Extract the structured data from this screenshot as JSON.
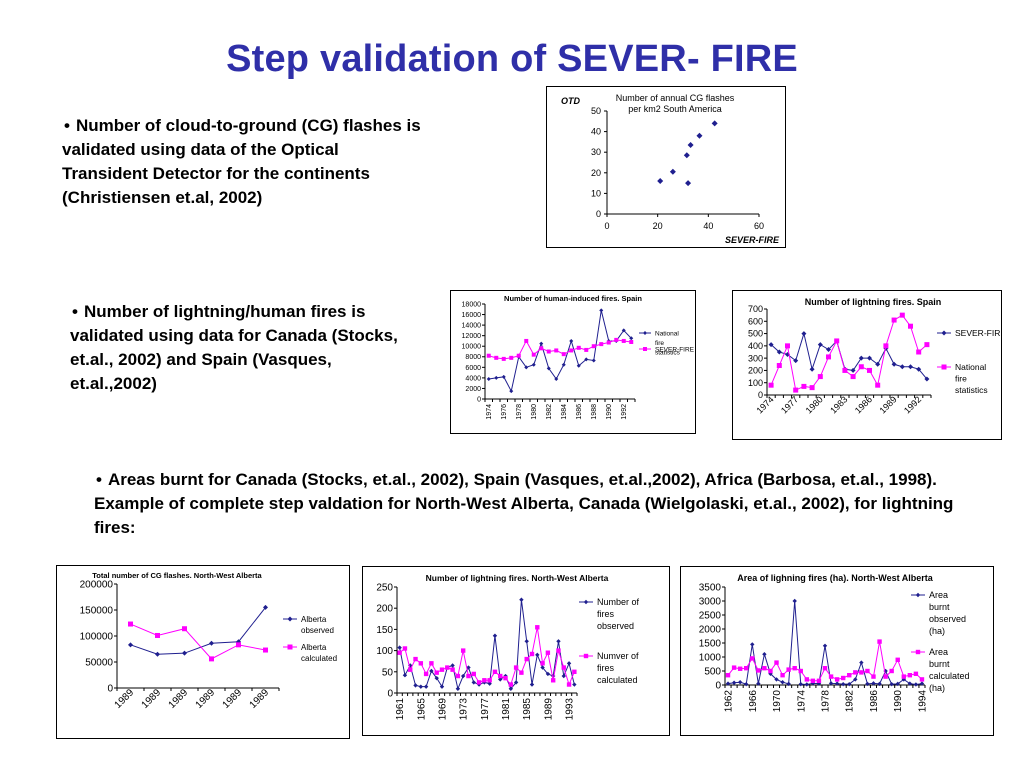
{
  "slide": {
    "title": "Step validation of SEVER- FIRE",
    "bullet_glyph": "•",
    "bullet1": "Number of cloud-to-ground (CG) flashes is validated using data of the Optical Transident Detector for the continents (Christiensen et.al, 2002)",
    "bullet2": "Number of lightning/human fires is validated using data for Canada (Stocks, et.al., 2002) and Spain (Vasques, et.al.,2002)",
    "bullet3": "Areas burnt for Canada (Stocks, et.al., 2002), Spain (Vasques, et.al.,2002), Africa (Barbosa, et.al., 1998). Example of complete step valdation for North-West Alberta, Canada (Wielgolaski, et.al., 2002), for lightning fires:"
  },
  "colors": {
    "title": "#2f2fa8",
    "series_blue": "#1f1f8f",
    "series_pink": "#ff00ff",
    "border": "#000000"
  },
  "chart_data": [
    {
      "id": "cg",
      "type": "scatter",
      "title": "Number of annual CG flashes per km2 South America",
      "xlabel": "SEVER-FIRE",
      "ylabel": "OTD",
      "xlim": [
        0,
        60
      ],
      "ylim": [
        0,
        50
      ],
      "xticks": [
        "0",
        "20",
        "40",
        "60"
      ],
      "yticks": [
        "0",
        "10",
        "20",
        "30",
        "40",
        "50"
      ],
      "x_values": [
        21,
        26,
        31.5,
        32,
        33,
        36.5,
        42.5
      ],
      "y_values": [
        16,
        20.5,
        28.5,
        15,
        33.5,
        38,
        44
      ],
      "legend": "none"
    },
    {
      "id": "spain_human",
      "type": "line",
      "title": "Number of human-induced fires. Spain",
      "ylim": [
        0,
        18000
      ],
      "yticks": [
        "0",
        "2000",
        "4000",
        "6000",
        "8000",
        "10000",
        "12000",
        "14000",
        "16000",
        "18000"
      ],
      "categories": [
        "1974",
        "1975",
        "1976",
        "1977",
        "1978",
        "1979",
        "1980",
        "1981",
        "1982",
        "1983",
        "1984",
        "1985",
        "1986",
        "1987",
        "1988",
        "1989",
        "1990",
        "1991",
        "1992",
        "1993"
      ],
      "xtick_labels": [
        "1974",
        "",
        "1976",
        "",
        "1978",
        "",
        "1980",
        "",
        "1982",
        "",
        "1984",
        "",
        "1986",
        "",
        "1988",
        "",
        "1990",
        "",
        "1992",
        ""
      ],
      "series": [
        {
          "name": "National fire statistics",
          "values": [
            3800,
            4000,
            4200,
            1500,
            8000,
            6000,
            6500,
            10500,
            5800,
            3800,
            6500,
            11000,
            6300,
            7500,
            7300,
            16800,
            11000,
            11000,
            13000,
            11500
          ]
        },
        {
          "name": "SEVER-FIRE",
          "values": [
            8200,
            7800,
            7600,
            7800,
            8200,
            11000,
            8400,
            9600,
            9000,
            9200,
            8500,
            9200,
            9700,
            9300,
            10000,
            10400,
            10700,
            11200,
            11000,
            10800
          ]
        }
      ],
      "legend": "right"
    },
    {
      "id": "spain_lightning",
      "type": "line",
      "title": "Number of lightning fires. Spain",
      "ylim": [
        0,
        700
      ],
      "yticks": [
        "0",
        "100",
        "200",
        "300",
        "400",
        "500",
        "600",
        "700"
      ],
      "categories": [
        "1974",
        "1975",
        "1976",
        "1977",
        "1978",
        "1979",
        "1980",
        "1981",
        "1982",
        "1983",
        "1984",
        "1985",
        "1986",
        "1987",
        "1988",
        "1989",
        "1990",
        "1991",
        "1992",
        "1993"
      ],
      "xtick_labels": [
        "1974",
        "",
        "",
        "1977",
        "",
        "",
        "1980",
        "",
        "",
        "1983",
        "",
        "",
        "1986",
        "",
        "",
        "1989",
        "",
        "",
        "1992",
        ""
      ],
      "series": [
        {
          "name": "SEVER-FIRE",
          "values": [
            410,
            350,
            330,
            280,
            500,
            210,
            410,
            370,
            440,
            210,
            200,
            300,
            300,
            250,
            380,
            250,
            230,
            230,
            210,
            130
          ]
        },
        {
          "name": "National fire statistics",
          "values": [
            80,
            240,
            400,
            40,
            70,
            60,
            150,
            310,
            440,
            200,
            150,
            230,
            200,
            80,
            400,
            610,
            650,
            560,
            350,
            410
          ]
        }
      ],
      "legend": "right"
    },
    {
      "id": "alberta_cg",
      "type": "line",
      "title": "Total number of CG flashes. North-West Alberta",
      "ylim": [
        0,
        200000
      ],
      "yticks": [
        "0",
        "50000",
        "100000",
        "150000",
        "200000"
      ],
      "categories": [
        "1989",
        "1989",
        "1989",
        "1989",
        "1989",
        "1989"
      ],
      "series": [
        {
          "name": "Alberta observed",
          "values": [
            83000,
            65000,
            67000,
            86000,
            89000,
            155000
          ]
        },
        {
          "name": "Alberta calculated",
          "values": [
            123000,
            101000,
            114000,
            56000,
            83000,
            73000
          ]
        }
      ],
      "legend": "right"
    },
    {
      "id": "alberta_fires",
      "type": "line",
      "title": "Number of lightning fires. North-West Alberta",
      "ylim": [
        0,
        250
      ],
      "yticks": [
        "0",
        "50",
        "100",
        "150",
        "200",
        "250"
      ],
      "categories": [
        "1961",
        "1962",
        "1963",
        "1964",
        "1965",
        "1966",
        "1967",
        "1968",
        "1969",
        "1970",
        "1971",
        "1972",
        "1973",
        "1974",
        "1975",
        "1976",
        "1977",
        "1978",
        "1979",
        "1980",
        "1981",
        "1982",
        "1983",
        "1984",
        "1985",
        "1986",
        "1987",
        "1988",
        "1989",
        "1990",
        "1991",
        "1992",
        "1993",
        "1994"
      ],
      "xtick_labels": [
        "1961",
        "",
        "",
        "",
        "1965",
        "",
        "",
        "",
        "1969",
        "",
        "",
        "",
        "1973",
        "",
        "",
        "",
        "1977",
        "",
        "",
        "",
        "1981",
        "",
        "",
        "",
        "1985",
        "",
        "",
        "",
        "1989",
        "",
        "",
        "",
        "1993",
        ""
      ],
      "series": [
        {
          "name": "Number of fires observed",
          "values": [
            107,
            42,
            65,
            18,
            15,
            15,
            52,
            35,
            15,
            60,
            65,
            10,
            40,
            60,
            25,
            20,
            25,
            22,
            135,
            32,
            40,
            10,
            25,
            220,
            122,
            20,
            90,
            60,
            45,
            40,
            122,
            40,
            70,
            20
          ]
        },
        {
          "name": "Numver of fires calculated",
          "values": [
            95,
            105,
            55,
            80,
            70,
            45,
            70,
            48,
            55,
            60,
            55,
            40,
            100,
            40,
            45,
            25,
            30,
            30,
            50,
            40,
            35,
            20,
            60,
            48,
            80,
            92,
            155,
            70,
            95,
            30,
            100,
            60,
            20,
            50
          ]
        }
      ],
      "legend": "right"
    },
    {
      "id": "alberta_area",
      "type": "line",
      "title": "Area of lighning fires (ha). North-West Alberta",
      "ylim": [
        0,
        3500
      ],
      "yticks": [
        "0",
        "500",
        "1000",
        "1500",
        "2000",
        "2500",
        "3000",
        "3500"
      ],
      "categories": [
        "1962",
        "1963",
        "1964",
        "1965",
        "1966",
        "1967",
        "1968",
        "1969",
        "1970",
        "1971",
        "1972",
        "1973",
        "1974",
        "1975",
        "1976",
        "1977",
        "1978",
        "1979",
        "1980",
        "1981",
        "1982",
        "1983",
        "1984",
        "1985",
        "1986",
        "1987",
        "1988",
        "1989",
        "1990",
        "1991",
        "1992",
        "1993",
        "1994"
      ],
      "xtick_labels": [
        "1962",
        "",
        "",
        "",
        "1966",
        "",
        "",
        "",
        "1970",
        "",
        "",
        "",
        "1974",
        "",
        "",
        "",
        "1978",
        "",
        "",
        "",
        "1982",
        "",
        "",
        "",
        "1986",
        "",
        "",
        "",
        "1990",
        "",
        "",
        "",
        "1994"
      ],
      "series": [
        {
          "name": "Area burnt observed (ha)",
          "values": [
            50,
            80,
            100,
            30,
            1450,
            50,
            1100,
            400,
            200,
            100,
            40,
            3000,
            30,
            20,
            60,
            50,
            1400,
            60,
            50,
            30,
            30,
            200,
            800,
            40,
            60,
            40,
            500,
            30,
            40,
            200,
            50,
            20,
            50
          ]
        },
        {
          "name": "Area burnt calculated (ha)",
          "values": [
            350,
            620,
            580,
            600,
            950,
            520,
            600,
            500,
            800,
            350,
            550,
            600,
            500,
            200,
            150,
            150,
            600,
            300,
            200,
            250,
            350,
            450,
            450,
            500,
            300,
            1550,
            300,
            500,
            900,
            300,
            350,
            400,
            200
          ]
        }
      ],
      "legend": "right"
    }
  ]
}
